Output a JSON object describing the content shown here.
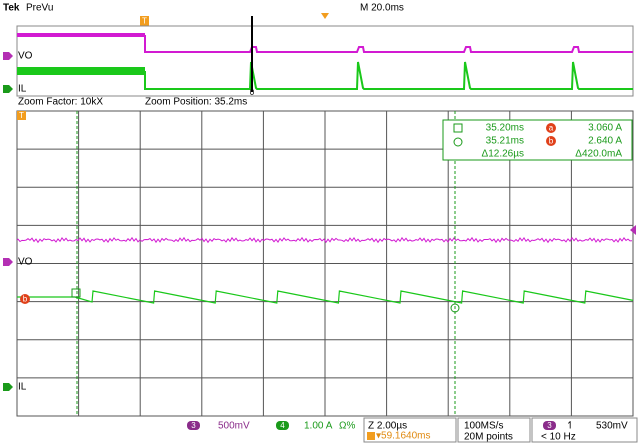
{
  "header": {
    "brand": "Tek",
    "mode": "PreVu",
    "timebase": "M 20.0ms",
    "trigger_marker": "T"
  },
  "overview": {
    "channels": [
      "VO",
      "IL"
    ],
    "cursor_marker": "0"
  },
  "zoom": {
    "factor": "Zoom Factor: 10kX",
    "position": "Zoom Position: 35.2ms"
  },
  "main": {
    "channels": [
      "VO",
      "IL"
    ],
    "trigger_marker": "T",
    "ref_marker": "b"
  },
  "cursors": {
    "rows": [
      [
        "35.20ms",
        "a",
        "3.060 A"
      ],
      [
        "35.21ms",
        "b",
        "2.640 A"
      ],
      [
        "Δ12.26µs",
        "",
        "Δ420.0mA"
      ]
    ]
  },
  "status": {
    "ch3_badge": "3",
    "ch3_scale": "500mV",
    "ch4_badge": "4",
    "ch4_scale": "1.00 A",
    "ch4_extra": "Ω%",
    "horizontal": "Z 2.00µs",
    "position": "▾59.1640ms",
    "sample_rate": "100MS/s",
    "record": "20M points",
    "trig_badge": "3",
    "trig_slope": "↿",
    "trig_level": "530mV",
    "filter": "< 10 Hz"
  }
}
